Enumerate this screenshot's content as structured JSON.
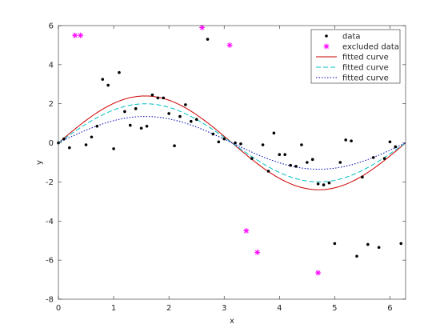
{
  "chart_data": {
    "type": "scatter",
    "title": "",
    "xlabel": "x",
    "ylabel": "y",
    "xlim": [
      0,
      6.2832
    ],
    "ylim": [
      -8,
      6
    ],
    "xticks": [
      0,
      1,
      2,
      3,
      4,
      5,
      6
    ],
    "yticks": [
      -8,
      -6,
      -4,
      -2,
      0,
      2,
      4,
      6
    ],
    "grid": false,
    "legend_location": "top-right",
    "data": {
      "name": "data",
      "marker": "dot",
      "color": "#000000",
      "x": [
        0.0,
        0.1,
        0.2,
        0.5,
        0.6,
        0.7,
        0.8,
        0.9,
        1.0,
        1.1,
        1.2,
        1.3,
        1.4,
        1.5,
        1.6,
        1.7,
        1.8,
        1.9,
        2.0,
        2.1,
        2.2,
        2.3,
        2.4,
        2.5,
        2.7,
        2.8,
        2.9,
        3.0,
        3.2,
        3.3,
        3.5,
        3.7,
        3.8,
        3.9,
        4.0,
        4.1,
        4.2,
        4.3,
        4.4,
        4.5,
        4.6,
        4.7,
        4.8,
        4.9,
        5.0,
        5.1,
        5.2,
        5.3,
        5.4,
        5.5,
        5.6,
        5.7,
        5.8,
        5.9,
        6.0,
        6.1,
        6.2
      ],
      "y": [
        0.0,
        0.2,
        -0.25,
        -0.1,
        0.3,
        0.85,
        3.25,
        2.95,
        -0.3,
        3.6,
        1.6,
        0.9,
        1.75,
        0.75,
        0.85,
        2.45,
        2.3,
        2.3,
        1.5,
        -0.15,
        1.35,
        1.95,
        1.1,
        1.2,
        5.3,
        0.45,
        0.05,
        0.2,
        0.0,
        -0.05,
        -0.8,
        -0.1,
        -1.45,
        0.5,
        -0.6,
        -0.6,
        -1.15,
        -1.2,
        -0.1,
        -1.0,
        -0.85,
        -2.1,
        -2.15,
        -2.05,
        -5.15,
        -1.0,
        0.15,
        0.1,
        -5.8,
        -1.75,
        -5.2,
        -0.75,
        -5.35,
        -0.8,
        0.05,
        -0.2,
        -5.15
      ]
    },
    "excluded_data": {
      "name": "excluded data",
      "marker": "asterisk",
      "color": "#ff00ff",
      "x": [
        0.3,
        0.4,
        2.6,
        3.1,
        3.4,
        3.6,
        4.7
      ],
      "y": [
        5.5,
        5.5,
        5.9,
        5.0,
        -4.5,
        -5.6,
        -6.65
      ]
    },
    "fitted_curves": [
      {
        "name": "fitted curve",
        "color": "#cc0000",
        "style": "solid",
        "model": "sine",
        "amplitude": 2.4
      },
      {
        "name": "fitted curve",
        "color": "#00c0c0",
        "style": "dashed",
        "model": "sine",
        "amplitude": 2.0
      },
      {
        "name": "fitted curve",
        "color": "#0000bb",
        "style": "dotted",
        "model": "sine",
        "amplitude": 1.35
      }
    ],
    "legend": [
      "data",
      "excluded data",
      "fitted curve",
      "fitted curve",
      "fitted curve"
    ]
  }
}
